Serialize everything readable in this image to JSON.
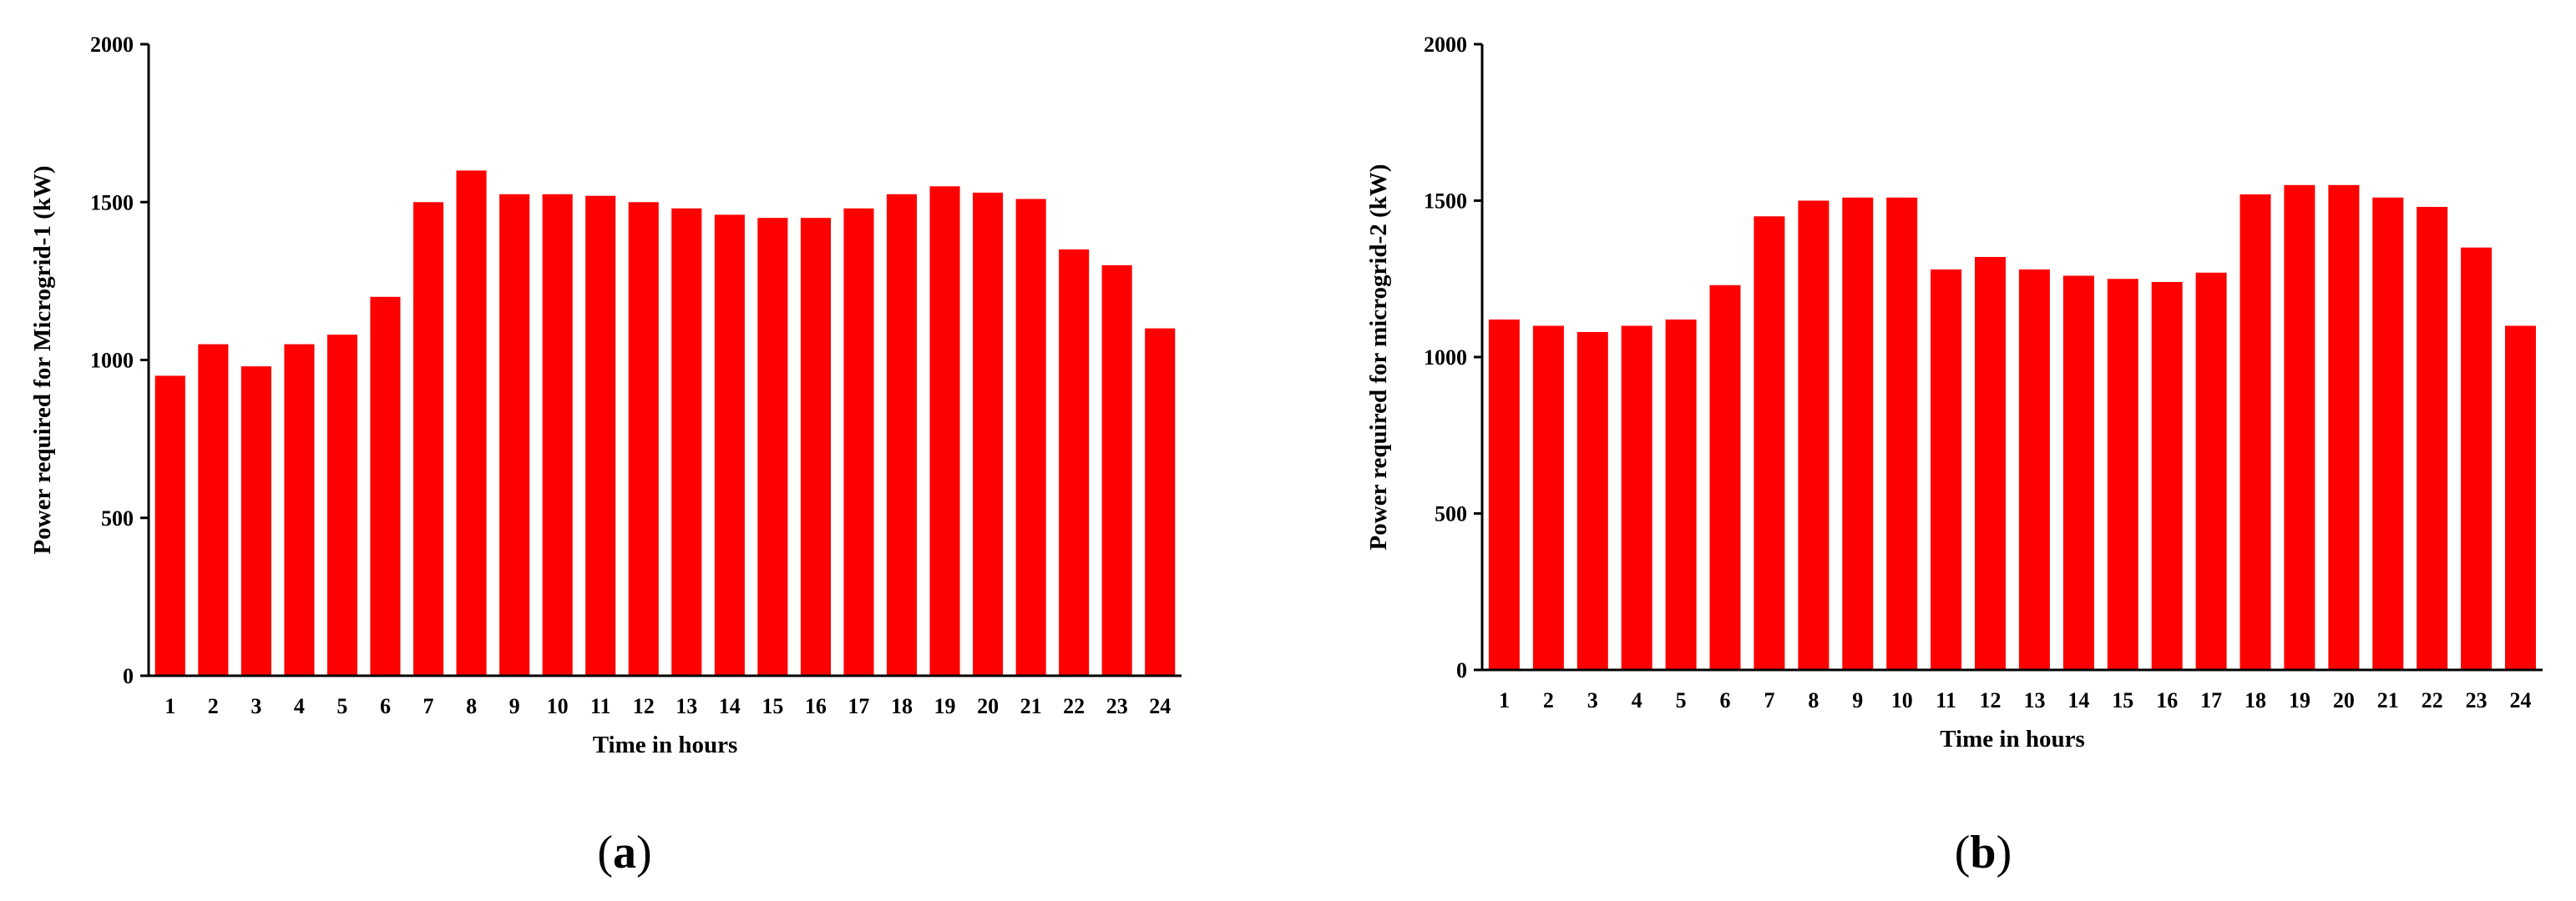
{
  "chart_data": [
    {
      "type": "bar",
      "panel_label": {
        "open": "(",
        "letter": "a",
        "close": ")"
      },
      "xlabel": "Time in hours",
      "ylabel": "Power required for Microgrid-1 (kW)",
      "ylim": [
        0,
        2000
      ],
      "yticks": [
        "0",
        "500",
        "1000",
        "1500",
        "2000"
      ],
      "bar_color": "#ff0000",
      "categories": [
        "1",
        "2",
        "3",
        "4",
        "5",
        "6",
        "7",
        "8",
        "9",
        "10",
        "11",
        "12",
        "13",
        "14",
        "15",
        "16",
        "17",
        "18",
        "19",
        "20",
        "21",
        "22",
        "23",
        "24"
      ],
      "values": [
        950,
        1050,
        980,
        1050,
        1080,
        1200,
        1500,
        1600,
        1525,
        1525,
        1520,
        1500,
        1480,
        1460,
        1450,
        1450,
        1480,
        1525,
        1550,
        1530,
        1510,
        1350,
        1300,
        1100
      ]
    },
    {
      "type": "bar",
      "panel_label": {
        "open": "(",
        "letter": "b",
        "close": ")"
      },
      "xlabel": "Time in hours",
      "ylabel": "Power required for microgrid-2 (kW)",
      "ylim": [
        0,
        2000
      ],
      "yticks": [
        "0",
        "500",
        "1000",
        "1500",
        "2000"
      ],
      "bar_color": "#ff0000",
      "categories": [
        "1",
        "2",
        "3",
        "4",
        "5",
        "6",
        "7",
        "8",
        "9",
        "10",
        "11",
        "12",
        "13",
        "14",
        "15",
        "16",
        "17",
        "18",
        "19",
        "20",
        "21",
        "22",
        "23",
        "24"
      ],
      "values": [
        1120,
        1100,
        1080,
        1100,
        1120,
        1230,
        1450,
        1500,
        1510,
        1510,
        1280,
        1320,
        1280,
        1260,
        1250,
        1240,
        1270,
        1520,
        1550,
        1550,
        1510,
        1480,
        1350,
        1100
      ]
    }
  ]
}
